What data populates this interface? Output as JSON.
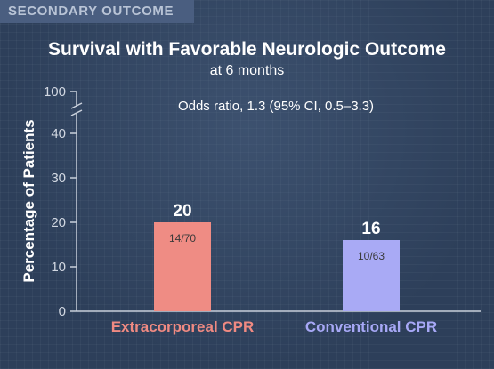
{
  "section_label": "SECONDARY OUTCOME",
  "chart_data": {
    "type": "bar",
    "title": "Survival with Favorable Neurologic Outcome",
    "subtitle": "at 6 months",
    "ylabel": "Percentage of Patients",
    "xlabel": "",
    "yticks": [
      "0",
      "10",
      "20",
      "30",
      "40",
      "100"
    ],
    "axis_break": "between 40 and 100",
    "ylim": [
      0,
      100
    ],
    "categories": [
      "Extracorporeal CPR",
      "Conventional CPR"
    ],
    "values": [
      20,
      16
    ],
    "value_labels": [
      "20",
      "16"
    ],
    "counts": [
      "14/70",
      "10/63"
    ],
    "bar_colors": [
      "#ef8c84",
      "#a9aaf5"
    ],
    "category_label_colors": [
      "#f08a82",
      "#a7a8f6"
    ],
    "annotation": "Odds ratio, 1.3 (95% CI, 0.5–3.3)",
    "grid": false
  }
}
